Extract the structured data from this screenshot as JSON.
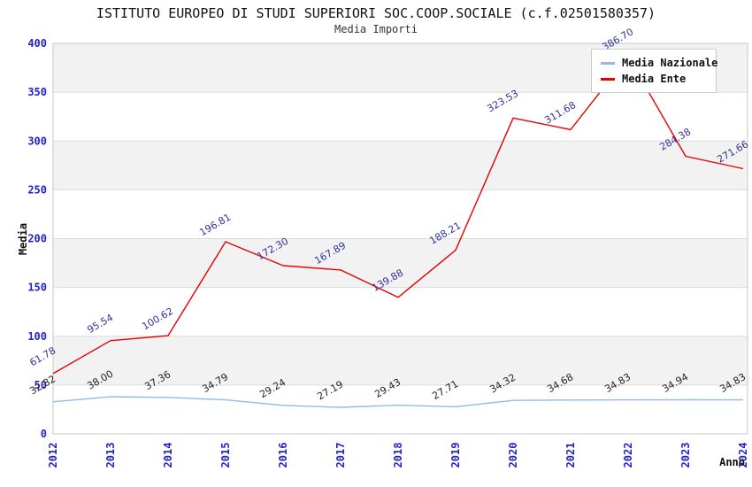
{
  "title": "ISTITUTO EUROPEO DI STUDI SUPERIORI SOC.COOP.SOCIALE (c.f.02501580357)",
  "subtitle": "Media Importi",
  "chart_data": {
    "type": "line",
    "title": "ISTITUTO EUROPEO DI STUDI SUPERIORI SOC.COOP.SOCIALE (c.f.02501580357)",
    "subtitle": "Media Importi",
    "xlabel": "Anno",
    "ylabel": "Media",
    "categories": [
      "2012",
      "2013",
      "2014",
      "2015",
      "2016",
      "2017",
      "2018",
      "2019",
      "2020",
      "2021",
      "2022",
      "2023",
      "2024"
    ],
    "y_ticks": [
      0,
      50,
      100,
      150,
      200,
      250,
      300,
      350,
      400
    ],
    "ylim": [
      0,
      400
    ],
    "grid": "horizontal-bands",
    "legend_position": "top-right",
    "series": [
      {
        "name": "Media Nazionale",
        "color": "#8FBCE6",
        "label_color": "#222222",
        "values": [
          32.82,
          38.0,
          37.36,
          34.79,
          29.24,
          27.19,
          29.43,
          27.71,
          34.32,
          34.68,
          34.83,
          34.94,
          34.83
        ],
        "labels": [
          "32.82",
          "38.00",
          "37.36",
          "34.79",
          "29.24",
          "27.19",
          "29.43",
          "27.71",
          "34.32",
          "34.68",
          "34.83",
          "34.94",
          "34.83"
        ]
      },
      {
        "name": "Media Ente",
        "color": "#E60000",
        "label_color": "#333399",
        "values": [
          61.78,
          95.54,
          100.62,
          196.81,
          172.3,
          167.89,
          139.88,
          188.21,
          323.53,
          311.68,
          386.7,
          284.38,
          271.66
        ],
        "labels": [
          "61.78",
          "95.54",
          "100.62",
          "196.81",
          "172.30",
          "167.89",
          "139.88",
          "188.21",
          "323.53",
          "311.68",
          "386.70",
          "284.38",
          "271.66"
        ]
      }
    ],
    "style": {
      "band_color": "#F2F2F2",
      "grid_color": "#DBDBDB",
      "border_color": "#C8C8C8",
      "tick_color": "#2222CC"
    }
  }
}
